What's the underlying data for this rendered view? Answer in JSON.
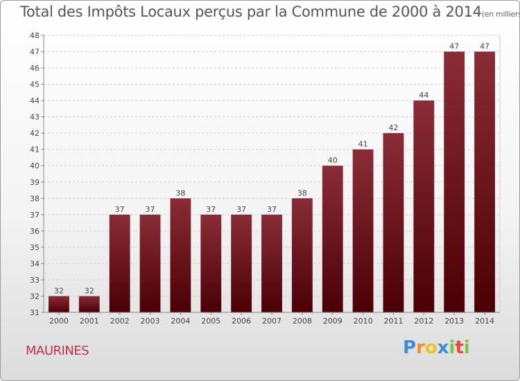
{
  "header": {
    "title": "Total des Impôts Locaux perçus par la Commune de 2000 à 2014",
    "subtitle": "(en milliers d'€)"
  },
  "footer": {
    "commune": "MAURINES",
    "logo_letters": [
      "P",
      "r",
      "o",
      "x",
      "i",
      "t",
      "i"
    ],
    "logo_colors": [
      "#3a8fd9",
      "#f28c1e",
      "#f2c21e",
      "#3a8fd9",
      "#7cc242",
      "#e8462e",
      "#7cc242"
    ]
  },
  "chart_data": {
    "type": "bar",
    "title": "Total des Impôts Locaux perçus par la Commune de 2000 à 2014",
    "subtitle": "(en milliers d'€)",
    "xlabel": "",
    "ylabel": "",
    "categories": [
      "2000",
      "2001",
      "2002",
      "2003",
      "2004",
      "2005",
      "2006",
      "2007",
      "2008",
      "2009",
      "2010",
      "2011",
      "2012",
      "2013",
      "2014"
    ],
    "values": [
      32,
      32,
      37,
      37,
      38,
      37,
      37,
      37,
      38,
      40,
      41,
      42,
      44,
      47,
      47
    ],
    "ylim": [
      31,
      48
    ],
    "yticks": [
      31,
      32,
      33,
      34,
      35,
      36,
      37,
      38,
      39,
      40,
      41,
      42,
      43,
      44,
      45,
      46,
      47,
      48
    ],
    "grid": true,
    "bar_color_top": "#8a2c36",
    "bar_color_bottom": "#4a0005"
  }
}
